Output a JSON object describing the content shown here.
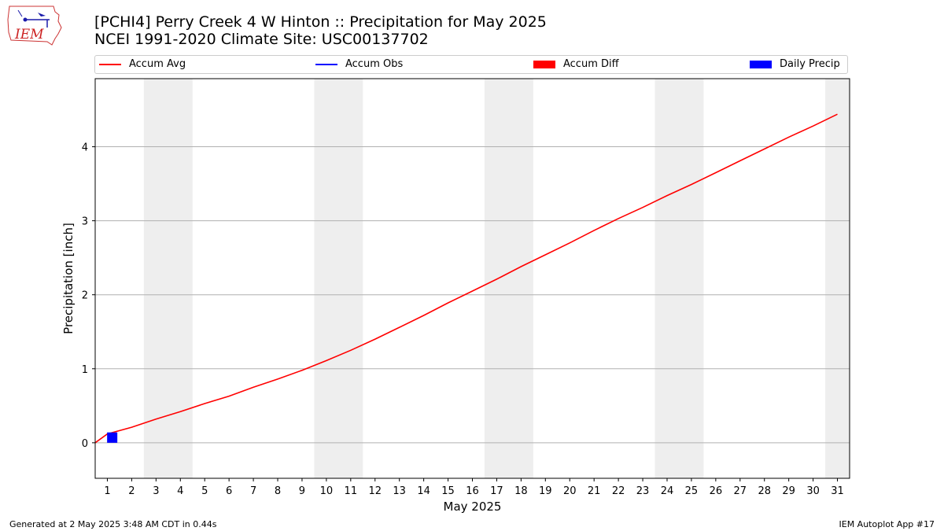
{
  "header": {
    "title_line1": "[PCHI4] Perry Creek 4 W Hinton :: Precipitation for May 2025",
    "title_line2": "NCEI 1991-2020 Climate Site: USC00137702",
    "logo_text": "IEM"
  },
  "footer": {
    "left": "Generated at 2 May 2025 3:48 AM CDT in 0.44s",
    "right": "IEM Autoplot App #17"
  },
  "colors": {
    "accum_avg": "#ff0000",
    "accum_obs": "#0000ff",
    "accum_diff": "#ff0000",
    "daily_precip": "#0000ff",
    "weekend_shade": "#eeeeee",
    "grid": "#b0b0b0"
  },
  "chart_data": {
    "type": "line",
    "title": "[PCHI4] Perry Creek 4 W Hinton :: Precipitation for May 2025",
    "subtitle": "NCEI 1991-2020 Climate Site: USC00137702",
    "xlabel": "May 2025",
    "ylabel": "Precipitation [inch]",
    "xlim": [
      0.5,
      31.5
    ],
    "ylim": [
      -0.48,
      4.92
    ],
    "x_ticks": [
      1,
      2,
      3,
      4,
      5,
      6,
      7,
      8,
      9,
      10,
      11,
      12,
      13,
      14,
      15,
      16,
      17,
      18,
      19,
      20,
      21,
      22,
      23,
      24,
      25,
      26,
      27,
      28,
      29,
      30,
      31
    ],
    "y_ticks": [
      0,
      1,
      2,
      3,
      4
    ],
    "grid": "horizontal",
    "legend": {
      "placement": "top",
      "entries": [
        {
          "label": "Accum Avg",
          "kind": "line",
          "color": "#ff0000"
        },
        {
          "label": "Accum Obs",
          "kind": "line",
          "color": "#0000ff"
        },
        {
          "label": "Accum Diff",
          "kind": "bar",
          "color": "#ff0000"
        },
        {
          "label": "Daily Precip",
          "kind": "bar",
          "color": "#0000ff"
        }
      ]
    },
    "weekend_shading": [
      [
        2.5,
        4.5
      ],
      [
        9.5,
        11.5
      ],
      [
        16.5,
        18.5
      ],
      [
        23.5,
        25.5
      ],
      [
        30.5,
        31.5
      ]
    ],
    "series": [
      {
        "name": "Accum Avg",
        "kind": "line",
        "x": [
          0.5,
          1,
          2,
          3,
          4,
          5,
          6,
          7,
          8,
          9,
          10,
          11,
          12,
          13,
          14,
          15,
          16,
          17,
          18,
          19,
          20,
          21,
          22,
          23,
          24,
          25,
          26,
          27,
          28,
          29,
          30,
          31
        ],
        "values": [
          0.0,
          0.12,
          0.21,
          0.32,
          0.42,
          0.53,
          0.63,
          0.75,
          0.86,
          0.98,
          1.11,
          1.25,
          1.4,
          1.56,
          1.72,
          1.89,
          2.05,
          2.21,
          2.38,
          2.54,
          2.7,
          2.87,
          3.03,
          3.18,
          3.34,
          3.49,
          3.65,
          3.81,
          3.97,
          4.13,
          4.28,
          4.44
        ]
      },
      {
        "name": "Daily Precip",
        "kind": "bar",
        "x": [
          1.2
        ],
        "values": [
          0.14
        ]
      }
    ]
  }
}
